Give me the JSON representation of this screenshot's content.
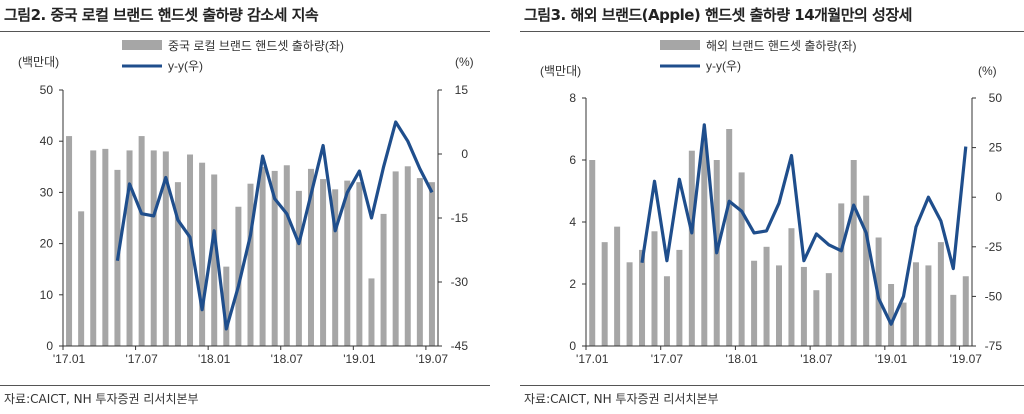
{
  "chart_data": [
    {
      "type": "bar+line",
      "title": "그림2. 중국 로컬 브랜드 핸드셋 출하량 감소세 지속",
      "left_unit": "(백만대)",
      "right_unit": "(%)",
      "x_tick_labels": [
        "'17.01",
        "'17.07",
        "'18.01",
        "'18.07",
        "'19.01",
        "'19.07"
      ],
      "ylim_left": [
        0,
        50
      ],
      "yticks_left": [
        0,
        10,
        20,
        30,
        40,
        50
      ],
      "ylim_right": [
        -45,
        15
      ],
      "yticks_right": [
        -45,
        -30,
        -15,
        0,
        15
      ],
      "months": [
        "17.01",
        "17.02",
        "17.03",
        "17.04",
        "17.05",
        "17.06",
        "17.07",
        "17.08",
        "17.09",
        "17.10",
        "17.11",
        "17.12",
        "18.01",
        "18.02",
        "18.03",
        "18.04",
        "18.05",
        "18.06",
        "18.07",
        "18.08",
        "18.09",
        "18.10",
        "18.11",
        "18.12",
        "19.01",
        "19.02",
        "19.03",
        "19.04",
        "19.05",
        "19.06",
        "19.07"
      ],
      "series": [
        {
          "name": "중국 로컬 브랜드 핸드셋 출하량(좌)",
          "type": "bar",
          "axis": "left",
          "color": "#a6a6a6",
          "values": [
            41,
            26.3,
            38.2,
            38.5,
            34.4,
            38.2,
            41,
            38.2,
            38,
            32,
            37.4,
            35.8,
            33.5,
            15.5,
            27.2,
            31.7,
            35,
            34.2,
            35.3,
            30.3,
            34.6,
            32.6,
            30.6,
            32.3,
            32,
            13.2,
            25.8,
            34.1,
            35.1,
            32.8,
            32
          ]
        },
        {
          "name": "y-y(우)",
          "type": "line",
          "axis": "right",
          "color": "#1f4e8c",
          "values": [
            null,
            null,
            null,
            null,
            -25,
            -7,
            -14,
            -14.5,
            -5.5,
            -15.5,
            -19.5,
            -36.5,
            -18,
            -41,
            -31,
            -19,
            -0.5,
            -10.5,
            -14,
            -21,
            -9.5,
            2,
            -18,
            -9,
            -4,
            -15,
            -3,
            7.5,
            3,
            -3.5,
            -9
          ]
        }
      ],
      "source": "자료:CAICT, NH 투자증권 리서치본부"
    },
    {
      "type": "bar+line",
      "title": "그림3. 해외 브랜드(Apple) 핸드셋 출하량 14개월만의 성장세",
      "left_unit": "(백만대)",
      "right_unit": "(%)",
      "x_tick_labels": [
        "'17.01",
        "'17.07",
        "'18.01",
        "'18.07",
        "'19.01",
        "'19.07"
      ],
      "ylim_left": [
        0,
        8
      ],
      "yticks_left": [
        0,
        2,
        4,
        6,
        8
      ],
      "ylim_right": [
        -75,
        50
      ],
      "yticks_right": [
        -75,
        -50,
        -25,
        0,
        25,
        50
      ],
      "months": [
        "17.01",
        "17.02",
        "17.03",
        "17.04",
        "17.05",
        "17.06",
        "17.07",
        "17.08",
        "17.09",
        "17.10",
        "17.11",
        "17.12",
        "18.01",
        "18.02",
        "18.03",
        "18.04",
        "18.05",
        "18.06",
        "18.07",
        "18.08",
        "18.09",
        "18.10",
        "18.11",
        "18.12",
        "19.01",
        "19.02",
        "19.03",
        "19.04",
        "19.05",
        "19.06",
        "19.07"
      ],
      "series": [
        {
          "name": "해외 브랜드 핸드셋 출하량(좌)",
          "type": "bar",
          "axis": "left",
          "color": "#a6a6a6",
          "values": [
            6,
            3.35,
            3.85,
            2.7,
            3.1,
            3.7,
            2.25,
            3.1,
            6.3,
            6.7,
            6,
            7,
            5.6,
            2.75,
            3.2,
            2.6,
            3.8,
            2.55,
            1.8,
            2.35,
            4.6,
            6,
            4.85,
            3.5,
            2,
            1.4,
            2.7,
            2.6,
            3.35,
            1.65,
            2.25
          ]
        },
        {
          "name": "y-y(우)",
          "type": "line",
          "axis": "right",
          "color": "#1f4e8c",
          "values": [
            null,
            null,
            null,
            null,
            -33,
            8,
            -32,
            9,
            -18,
            36.5,
            -28,
            -2,
            -7,
            -18,
            -17,
            -3,
            21,
            -32,
            -18.5,
            -24,
            -27,
            -4,
            -18,
            -51,
            -64,
            -50,
            -15,
            0,
            -12,
            -36,
            25.5
          ]
        }
      ],
      "source": "자료:CAICT, NH 투자증권 리서치본부"
    }
  ]
}
